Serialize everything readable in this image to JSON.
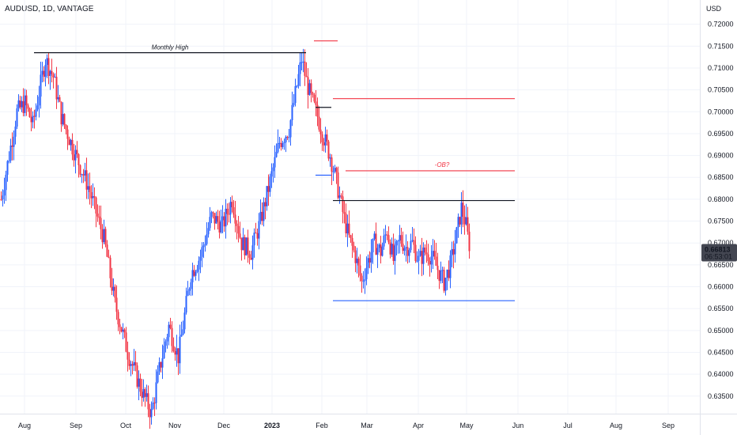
{
  "header": {
    "symbol": "AUDUSD, 1D, VANTAGE",
    "currency": "USD"
  },
  "colors": {
    "up": "#2962ff",
    "down": "#f23645",
    "grid": "#f0f3fa",
    "axis": "#e0e3eb",
    "black_line": "#131722",
    "price_label_bg": "#434651"
  },
  "chart_data": {
    "type": "candlestick",
    "y_ticks": [
      "0.72000",
      "0.71500",
      "0.71000",
      "0.70500",
      "0.70000",
      "0.69500",
      "0.69000",
      "0.68500",
      "0.68000",
      "0.67500",
      "0.67000",
      "0.66500",
      "0.66000",
      "0.65500",
      "0.65000",
      "0.64500",
      "0.64000",
      "0.63500"
    ],
    "x_ticks": [
      "Aug",
      "Sep",
      "Oct",
      "Nov",
      "Dec",
      "2023",
      "Feb",
      "Mar",
      "Apr",
      "May",
      "Jun",
      "Jul",
      "Aug",
      "Sep"
    ],
    "ylim": [
      0.6308,
      0.7241
    ],
    "current_price": "0.66813",
    "countdown": "06:53:01",
    "anchors": [
      {
        "t": 0,
        "v": 0.68
      },
      {
        "t": 10,
        "v": 0.7
      },
      {
        "t": 15,
        "v": 0.702
      },
      {
        "t": 20,
        "v": 0.697
      },
      {
        "t": 28,
        "v": 0.712
      },
      {
        "t": 33,
        "v": 0.708
      },
      {
        "t": 38,
        "v": 0.699
      },
      {
        "t": 45,
        "v": 0.692
      },
      {
        "t": 55,
        "v": 0.683
      },
      {
        "t": 65,
        "v": 0.671
      },
      {
        "t": 72,
        "v": 0.656
      },
      {
        "t": 80,
        "v": 0.645
      },
      {
        "t": 88,
        "v": 0.637
      },
      {
        "t": 95,
        "v": 0.631
      },
      {
        "t": 100,
        "v": 0.641
      },
      {
        "t": 106,
        "v": 0.651
      },
      {
        "t": 112,
        "v": 0.644
      },
      {
        "t": 120,
        "v": 0.663
      },
      {
        "t": 126,
        "v": 0.667
      },
      {
        "t": 133,
        "v": 0.676
      },
      {
        "t": 140,
        "v": 0.674
      },
      {
        "t": 146,
        "v": 0.68
      },
      {
        "t": 152,
        "v": 0.67
      },
      {
        "t": 158,
        "v": 0.668
      },
      {
        "t": 164,
        "v": 0.675
      },
      {
        "t": 170,
        "v": 0.684
      },
      {
        "t": 176,
        "v": 0.693
      },
      {
        "t": 182,
        "v": 0.696
      },
      {
        "t": 186,
        "v": 0.704
      },
      {
        "t": 190,
        "v": 0.712
      },
      {
        "t": 193,
        "v": 0.707
      },
      {
        "t": 196,
        "v": 0.703
      },
      {
        "t": 200,
        "v": 0.699
      },
      {
        "t": 204,
        "v": 0.694
      },
      {
        "t": 208,
        "v": 0.69
      },
      {
        "t": 212,
        "v": 0.684
      },
      {
        "t": 216,
        "v": 0.677
      },
      {
        "t": 220,
        "v": 0.671
      },
      {
        "t": 224,
        "v": 0.667
      },
      {
        "t": 228,
        "v": 0.661
      },
      {
        "t": 232,
        "v": 0.666
      },
      {
        "t": 236,
        "v": 0.67
      },
      {
        "t": 240,
        "v": 0.668
      },
      {
        "t": 244,
        "v": 0.673
      },
      {
        "t": 248,
        "v": 0.666
      },
      {
        "t": 252,
        "v": 0.671
      },
      {
        "t": 256,
        "v": 0.669
      },
      {
        "t": 260,
        "v": 0.67
      },
      {
        "t": 264,
        "v": 0.666
      },
      {
        "t": 268,
        "v": 0.668
      },
      {
        "t": 272,
        "v": 0.667
      },
      {
        "t": 276,
        "v": 0.664
      },
      {
        "t": 280,
        "v": 0.661
      },
      {
        "t": 284,
        "v": 0.665
      },
      {
        "t": 288,
        "v": 0.672
      },
      {
        "t": 291,
        "v": 0.678
      },
      {
        "t": 294,
        "v": 0.674
      },
      {
        "t": 296,
        "v": 0.669
      }
    ],
    "levels": [
      {
        "name": "monthly-high-line",
        "value": 0.7135,
        "t1": 21,
        "t2": 193,
        "color": "black"
      },
      {
        "name": "red-level-top",
        "value": 0.7162,
        "t1": 198,
        "t2": 213,
        "color": "red"
      },
      {
        "name": "red-level-upper",
        "value": 0.703,
        "t1": 210,
        "t2": 325,
        "color": "red"
      },
      {
        "name": "black-level-short",
        "value": 0.701,
        "t1": 199,
        "t2": 209,
        "color": "black"
      },
      {
        "name": "blue-level-short",
        "value": 0.6855,
        "t1": 199,
        "t2": 209,
        "color": "blue"
      },
      {
        "name": "ob-level",
        "value": 0.6865,
        "t1": 218,
        "t2": 325,
        "color": "red"
      },
      {
        "name": "resistance-line",
        "value": 0.6797,
        "t1": 210,
        "t2": 325,
        "color": "black"
      },
      {
        "name": "support-line",
        "value": 0.6568,
        "t1": 210,
        "t2": 325,
        "color": "blue"
      }
    ],
    "annotations": {
      "monthly_high": "Monthly High",
      "ob": "-OB?"
    }
  }
}
